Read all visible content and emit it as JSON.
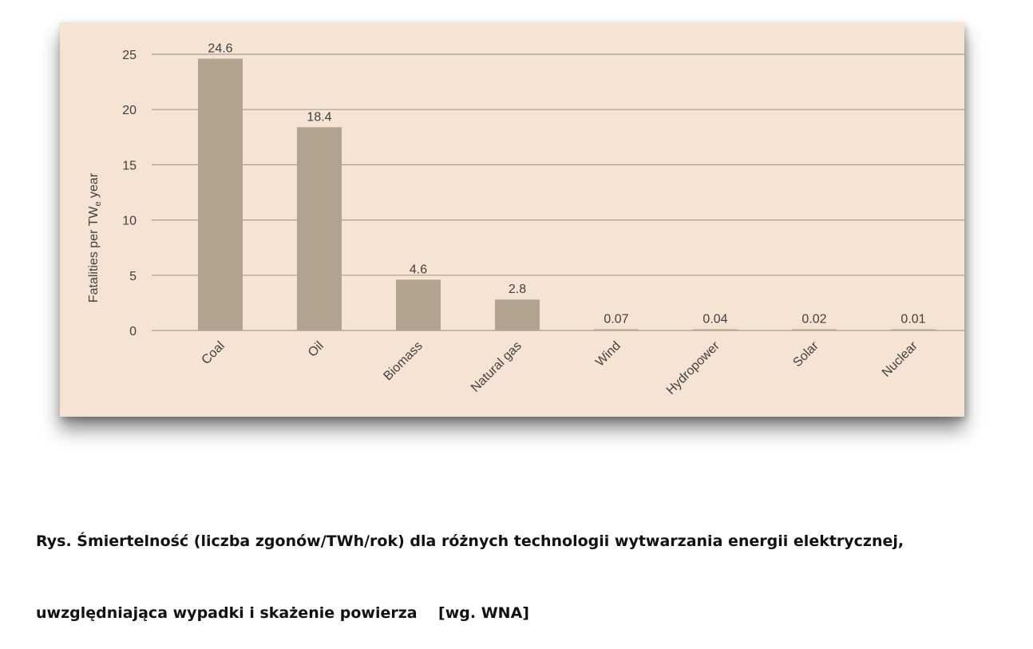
{
  "chart_data": {
    "type": "bar",
    "categories": [
      "Coal",
      "Oil",
      "Biomass",
      "Natural gas",
      "Wind",
      "Hydropower",
      "Solar",
      "Nuclear"
    ],
    "values": [
      24.6,
      18.4,
      4.6,
      2.8,
      0.07,
      0.04,
      0.02,
      0.01
    ],
    "data_labels": [
      "24.6",
      "18.4",
      "4.6",
      "2.8",
      "0.07",
      "0.04",
      "0.02",
      "0.01"
    ],
    "ylabel": "Fatalities per TW",
    "ylabel_subscript": "e",
    "ylabel_suffix": " year",
    "ylim": [
      0,
      25
    ],
    "yticks": [
      0,
      5,
      10,
      15,
      20,
      25
    ],
    "grid": true,
    "colors": {
      "bar": "#b1a38f",
      "background": "#f5e4d3",
      "grid": "#a89e94",
      "text": "#404040"
    }
  },
  "caption": {
    "line1": "Rys. Śmiertelność (liczba zgonów/TWh/rok) dla różnych technologii wytwarzania energii elektrycznej,",
    "line2": "uwzględniająca wypadki i skażenie powierza    [wg. WNA]"
  }
}
